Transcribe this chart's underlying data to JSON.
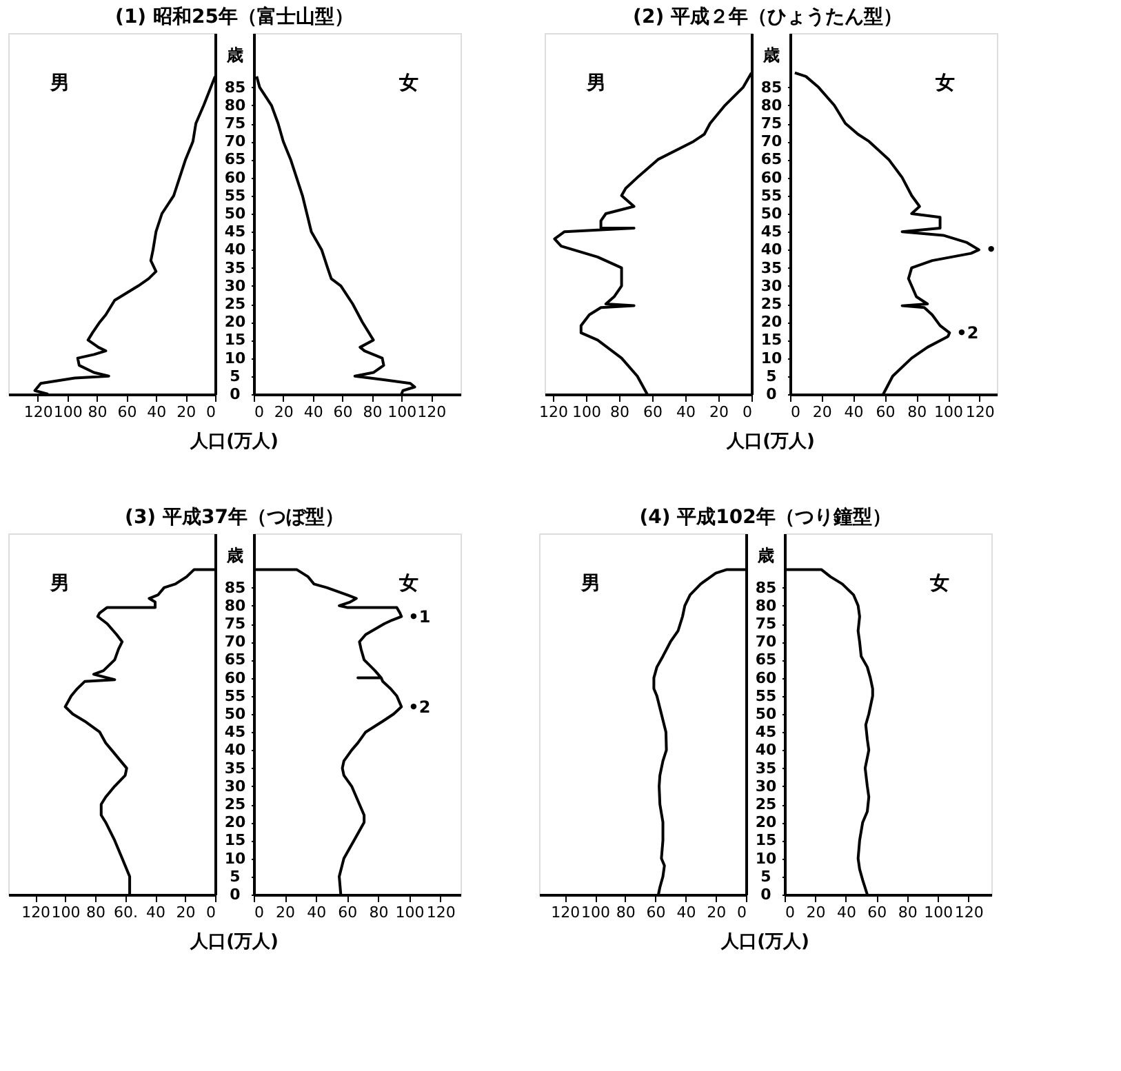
{
  "chart_data": [
    {
      "type": "line",
      "title": "(1)  昭和25年（富士山型）",
      "xlabel": "人口(万人)",
      "ylabel": "歳",
      "xlim": [
        140,
        0
      ],
      "ylim": [
        0,
        100
      ],
      "xticks": [
        120,
        100,
        80,
        60,
        40,
        20,
        0
      ],
      "yticks": [
        0,
        5,
        10,
        15,
        20,
        25,
        30,
        35,
        40,
        45,
        50,
        55,
        60,
        65,
        70,
        75,
        80,
        85
      ],
      "series": [
        {
          "name": "男",
          "color": "#000000",
          "x": [
            0,
            7.7,
            13,
            15,
            20,
            24,
            28,
            36,
            40,
            42,
            43.5,
            40,
            45,
            52,
            64,
            68,
            74,
            78,
            83,
            86,
            79,
            74,
            82,
            93,
            92,
            82,
            72,
            95,
            118,
            122,
            113
          ],
          "values": [
            88,
            80,
            75,
            70,
            65,
            60,
            55,
            50,
            45,
            40,
            37,
            34,
            32,
            30,
            27,
            26,
            22,
            20,
            17,
            15,
            13,
            12,
            11,
            10,
            8,
            6,
            5,
            4.5,
            3,
            1,
            0
          ]
        }
      ]
    },
    {
      "type": "line",
      "xlim": [
        0,
        140
      ],
      "ylim": [
        0,
        100
      ],
      "xticks": [
        0,
        20,
        40,
        60,
        80,
        100,
        120
      ],
      "yticks": [
        0,
        5,
        10,
        15,
        20,
        25,
        30,
        35,
        40,
        45,
        50,
        55,
        60,
        65,
        70,
        75,
        80,
        85
      ],
      "tick_labels": "x",
      "series": [
        {
          "name": "女",
          "color": "#000000",
          "x": [
            2,
            4,
            12,
            16.5,
            20,
            25,
            29,
            33,
            36,
            39,
            46,
            50,
            52.5,
            59,
            67,
            73.5,
            81,
            72,
            75,
            87,
            88,
            81,
            68.5,
            88,
            106,
            109,
            101,
            100
          ],
          "values": [
            88,
            85,
            80,
            75,
            70,
            65,
            60,
            55,
            50,
            45,
            40,
            35,
            32,
            30,
            25,
            20,
            15,
            13,
            12,
            10,
            8,
            6,
            5,
            4,
            3,
            2,
            1,
            0
          ]
        }
      ]
    },
    {
      "type": "line",
      "title": "(2)  平成２年（ひょうたん型）",
      "xlabel": "人口(万人)",
      "ylabel": "歳",
      "xlim": [
        125,
        0
      ],
      "ylim": [
        0,
        100
      ],
      "xticks": [
        120,
        100,
        80,
        60,
        40,
        20,
        0
      ],
      "yticks": [
        0,
        5,
        10,
        15,
        20,
        25,
        30,
        35,
        40,
        45,
        50,
        55,
        60,
        65,
        70,
        75,
        80,
        85
      ],
      "series": [
        {
          "name": "男",
          "color": "#000000",
          "x": [
            0,
            5,
            16,
            25,
            28.5,
            35,
            56.5,
            69,
            76,
            78.5,
            71,
            88,
            91,
            91,
            71,
            113,
            119,
            115,
            93,
            78.5,
            78.5,
            78.5,
            83,
            88,
            71,
            91,
            98,
            103,
            103,
            93,
            78.5,
            69,
            63
          ],
          "values": [
            89,
            85,
            80,
            75,
            72,
            70,
            65,
            60,
            57,
            55,
            52,
            50,
            48,
            46,
            46,
            45,
            43,
            41,
            38,
            35,
            33,
            30,
            27,
            25,
            24.5,
            24,
            22,
            19,
            17,
            15,
            10,
            5,
            0
          ]
        }
      ]
    },
    {
      "type": "line",
      "xlim": [
        0,
        131
      ],
      "ylim": [
        0,
        100
      ],
      "xticks": [
        0,
        20,
        40,
        60,
        80,
        100,
        120
      ],
      "yticks": [
        0,
        5,
        10,
        15,
        20,
        25,
        30,
        35,
        40,
        45,
        50,
        55,
        60,
        65,
        70,
        75,
        80,
        85
      ],
      "tick_labels": "x",
      "annotations": [
        {
          "text": "•",
          "x": 119.6,
          "y": 40
        },
        {
          "text": "•2",
          "x": 101,
          "y": 17
        }
      ],
      "series": [
        {
          "name": "女",
          "color": "#000000",
          "x": [
            3,
            10,
            18,
            28,
            35,
            43,
            50,
            62.5,
            71,
            77,
            82,
            77,
            95,
            95,
            71,
            97,
            112,
            119.6,
            114.6,
            90,
            77,
            75,
            77,
            80,
            87,
            71,
            85,
            90,
            95,
            101,
            100,
            87,
            77,
            65,
            59
          ],
          "values": [
            89,
            88,
            85,
            80,
            75,
            72,
            70,
            65,
            60,
            55,
            52,
            50,
            49,
            46,
            45,
            44,
            42,
            40,
            39,
            37,
            35,
            32,
            30,
            27,
            25,
            24.5,
            24,
            22,
            19,
            17,
            16,
            13,
            10,
            5,
            0
          ]
        }
      ]
    },
    {
      "type": "line",
      "title": "(3)  平成37年（つぼ型）",
      "xlabel": "人口(万人)",
      "ylabel": "歳",
      "xlim": [
        138,
        0
      ],
      "ylim": [
        0,
        100
      ],
      "xticks": [
        120,
        100,
        80,
        {
          "value": 60,
          "label": "60."
        },
        40,
        20,
        0
      ],
      "yticks": [
        0,
        5,
        10,
        15,
        20,
        25,
        30,
        35,
        40,
        45,
        50,
        55,
        60,
        65,
        70,
        75,
        80,
        85
      ],
      "series": [
        {
          "name": "男",
          "color": "#000000",
          "x": [
            0,
            14,
            19,
            26.5,
            34,
            38,
            44,
            40,
            40,
            72,
            77,
            78.3,
            72,
            65.7,
            62,
            64.4,
            67,
            74.5,
            81,
            67,
            87,
            92,
            96,
            100,
            95,
            87,
            77,
            73,
            69,
            63,
            59,
            60,
            67,
            73,
            76,
            76,
            73,
            67,
            62,
            57,
            57
          ],
          "values": [
            90,
            90,
            88,
            86,
            85,
            83,
            82,
            81,
            79.5,
            79.5,
            78,
            77,
            75,
            72,
            70,
            68,
            65,
            62,
            61,
            59.5,
            59,
            57,
            55,
            52,
            50,
            48,
            45,
            42,
            40,
            37,
            35,
            33,
            30,
            27,
            25,
            22,
            20,
            15,
            10,
            5,
            0
          ]
        }
      ]
    },
    {
      "type": "line",
      "xlim": [
        0,
        133
      ],
      "ylim": [
        0,
        100
      ],
      "xticks": [
        0,
        20,
        40,
        60,
        80,
        100,
        120
      ],
      "yticks": [
        0,
        5,
        10,
        15,
        20,
        25,
        30,
        35,
        40,
        45,
        50,
        55,
        60,
        65,
        70,
        75,
        80,
        85
      ],
      "tick_labels": "x",
      "annotations": [
        {
          "text": "•1",
          "x": 95,
          "y": 77
        },
        {
          "text": "•2",
          "x": 95,
          "y": 52
        }
      ],
      "series": [
        {
          "name": "女",
          "color": "#000000",
          "x": [
            0,
            27.6,
            35,
            38.7,
            47,
            60,
            66,
            62,
            55,
            60,
            92,
            94,
            95,
            89,
            84,
            72,
            68,
            69,
            71,
            78,
            82,
            67,
            82,
            83,
            88,
            92,
            95,
            90,
            83,
            72,
            67,
            63,
            58,
            57,
            58,
            63,
            68,
            71,
            71,
            64.5,
            58,
            55,
            56
          ],
          "values": [
            90,
            90,
            88,
            86,
            85,
            83,
            82,
            81,
            80,
            79.5,
            79.5,
            78,
            77,
            76,
            75,
            72,
            70,
            68,
            65,
            62,
            60,
            60,
            60,
            59,
            57,
            55,
            52,
            50,
            48,
            45,
            42,
            40,
            37,
            35,
            33,
            30,
            25,
            22,
            20,
            15,
            10,
            5,
            0
          ]
        }
      ]
    },
    {
      "type": "line",
      "title": "(4)  平成102年（つり鐘型）",
      "xlabel": "人口(万人)",
      "ylabel": "歳",
      "xlim": [
        137,
        0
      ],
      "ylim": [
        0,
        100
      ],
      "xticks": [
        120,
        100,
        80,
        60,
        40,
        20,
        0
      ],
      "yticks": [
        0,
        5,
        10,
        15,
        20,
        25,
        30,
        35,
        40,
        45,
        50,
        55,
        60,
        65,
        70,
        75,
        80,
        85
      ],
      "series": [
        {
          "name": "男",
          "color": "#000000",
          "x": [
            0,
            12.6,
            20,
            30,
            37,
            40.5,
            42,
            45,
            50,
            55,
            59,
            61,
            61,
            59,
            56,
            53,
            52.7,
            55,
            57,
            57.5,
            57,
            55,
            55,
            56,
            54,
            55,
            57,
            58
          ],
          "values": [
            90,
            90,
            89,
            86,
            83,
            80,
            77,
            73,
            70,
            66,
            63,
            60,
            57,
            55,
            50,
            45,
            40,
            37,
            33,
            30,
            25,
            20,
            15,
            10,
            8,
            5,
            2,
            0
          ]
        }
      ]
    },
    {
      "type": "line",
      "xlim": [
        0,
        135
      ],
      "ylim": [
        0,
        100
      ],
      "xticks": [
        0,
        20,
        40,
        60,
        80,
        100,
        120
      ],
      "yticks": [
        0,
        5,
        10,
        15,
        20,
        25,
        30,
        35,
        40,
        45,
        50,
        55,
        60,
        65,
        70,
        75,
        80,
        85
      ],
      "tick_labels": "x",
      "series": [
        {
          "name": "女",
          "color": "#000000",
          "x": [
            0,
            24,
            30,
            37.7,
            45,
            48,
            49,
            48,
            49,
            50,
            54,
            56,
            57.5,
            57.5,
            55,
            53,
            54,
            55,
            52.6,
            54,
            55,
            54,
            51,
            49,
            48,
            49,
            51,
            54
          ],
          "values": [
            90,
            90,
            88,
            86,
            83,
            80,
            77,
            73,
            70,
            66,
            63,
            60,
            57,
            55,
            50,
            47,
            43,
            40,
            35,
            30,
            27,
            23,
            20,
            15,
            10,
            7,
            4,
            0
          ]
        }
      ]
    }
  ]
}
